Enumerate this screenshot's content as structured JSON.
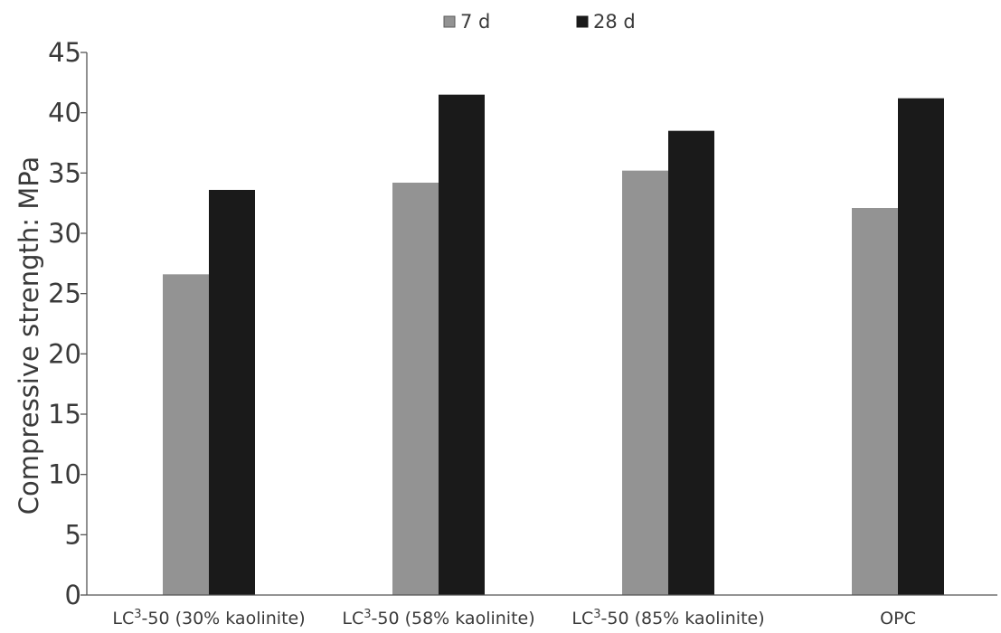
{
  "chart_data": {
    "type": "bar",
    "title": "",
    "xlabel": "",
    "ylabel": "Compressive strength: MPa",
    "ylim": [
      0,
      45
    ],
    "yticks": [
      0,
      5,
      10,
      15,
      20,
      25,
      30,
      35,
      40,
      45
    ],
    "grid": false,
    "legend_position": "top-center",
    "categories": [
      {
        "prefix": "LC",
        "sup": "3",
        "suffix": "-50 (30% kaolinite)"
      },
      {
        "prefix": "LC",
        "sup": "3",
        "suffix": "-50 (58% kaolinite)"
      },
      {
        "prefix": "LC",
        "sup": "3",
        "suffix": "-50 (85% kaolinite)"
      },
      {
        "prefix": "OPC",
        "sup": "",
        "suffix": ""
      }
    ],
    "series": [
      {
        "name": "7 d",
        "color": "#939393",
        "values": [
          26.6,
          34.2,
          35.2,
          32.1
        ]
      },
      {
        "name": "28 d",
        "color": "#1a1a1a",
        "values": [
          33.6,
          41.5,
          38.5,
          41.2
        ]
      }
    ]
  }
}
